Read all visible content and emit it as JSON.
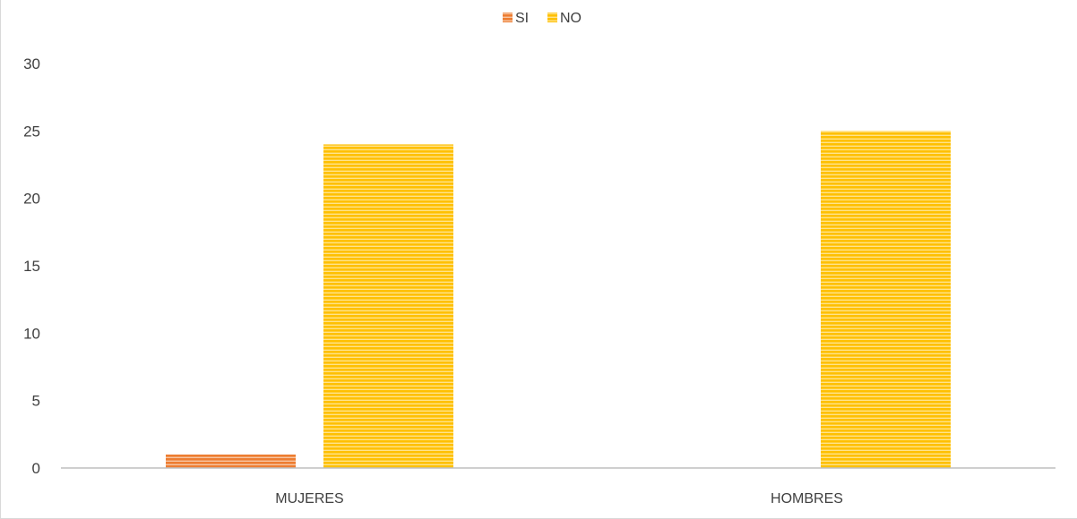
{
  "chart_data": {
    "type": "bar",
    "categories": [
      "MUJERES",
      "HOMBRES"
    ],
    "series": [
      {
        "name": "SI",
        "values": [
          1,
          0
        ],
        "color": "#ED7D31"
      },
      {
        "name": "NO",
        "values": [
          24,
          25
        ],
        "color": "#FFC000"
      }
    ],
    "title": "",
    "xlabel": "",
    "ylabel": "",
    "ylim": [
      0,
      30
    ],
    "yticks": [
      0,
      5,
      10,
      15,
      20,
      25,
      30
    ],
    "grid": false,
    "legend_position": "top-center",
    "bar_pattern": "horizontal-stripes"
  }
}
